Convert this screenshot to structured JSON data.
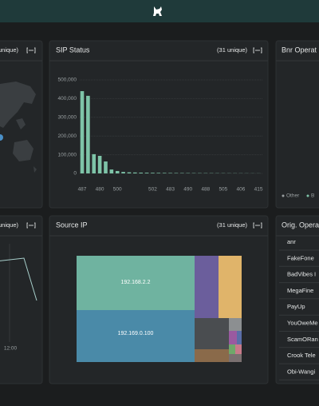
{
  "panels": {
    "top_left": {
      "title": "unique)"
    },
    "sip_status": {
      "title": "SIP Status",
      "count": "(31 unique)"
    },
    "top_right": {
      "title": "Bnr Operat",
      "legend": [
        "Other",
        "B"
      ]
    },
    "bottom_left": {
      "title": "unique)",
      "x_tick": "12:00"
    },
    "source_ip": {
      "title": "Source IP",
      "count": "(31 unique)",
      "labels": [
        "192.168.2.2",
        "192.169.0.100"
      ]
    },
    "bottom_right": {
      "title": "Orig. Opera",
      "items": [
        "anr",
        "FakeFone",
        "BadVibes I",
        "MegaFine",
        "PayUp",
        "YouOweMe",
        "ScamORan",
        "Crook Tele",
        "Obi-Wangi"
      ]
    }
  },
  "chart_data": {
    "type": "bar",
    "color": "#7ec4a8",
    "categories": [
      "487",
      null,
      null,
      "480",
      null,
      null,
      "500",
      null,
      null,
      null,
      null,
      null,
      "502",
      null,
      null,
      "483",
      null,
      null,
      "490",
      null,
      null,
      "488",
      null,
      null,
      "505",
      null,
      null,
      "406",
      null,
      null,
      "415"
    ],
    "values": [
      440000,
      415000,
      103000,
      94000,
      64000,
      21000,
      13000,
      8000,
      6000,
      5000,
      4200,
      3800,
      3400,
      3000,
      2700,
      2400,
      2200,
      2000,
      1800,
      1600,
      1500,
      1400,
      1300,
      1200,
      1100,
      1000,
      900,
      800,
      700,
      600,
      500
    ],
    "ylim": [
      0,
      500000
    ],
    "yticks": [
      0,
      {
        "value": 100000,
        "label": "100,000"
      },
      {
        "value": 200000,
        "label": "200,000"
      },
      {
        "value": 300000,
        "label": "300,000"
      },
      {
        "value": 400000,
        "label": "400,000"
      },
      {
        "value": 500000,
        "label": "500,000"
      }
    ],
    "grid": true
  }
}
